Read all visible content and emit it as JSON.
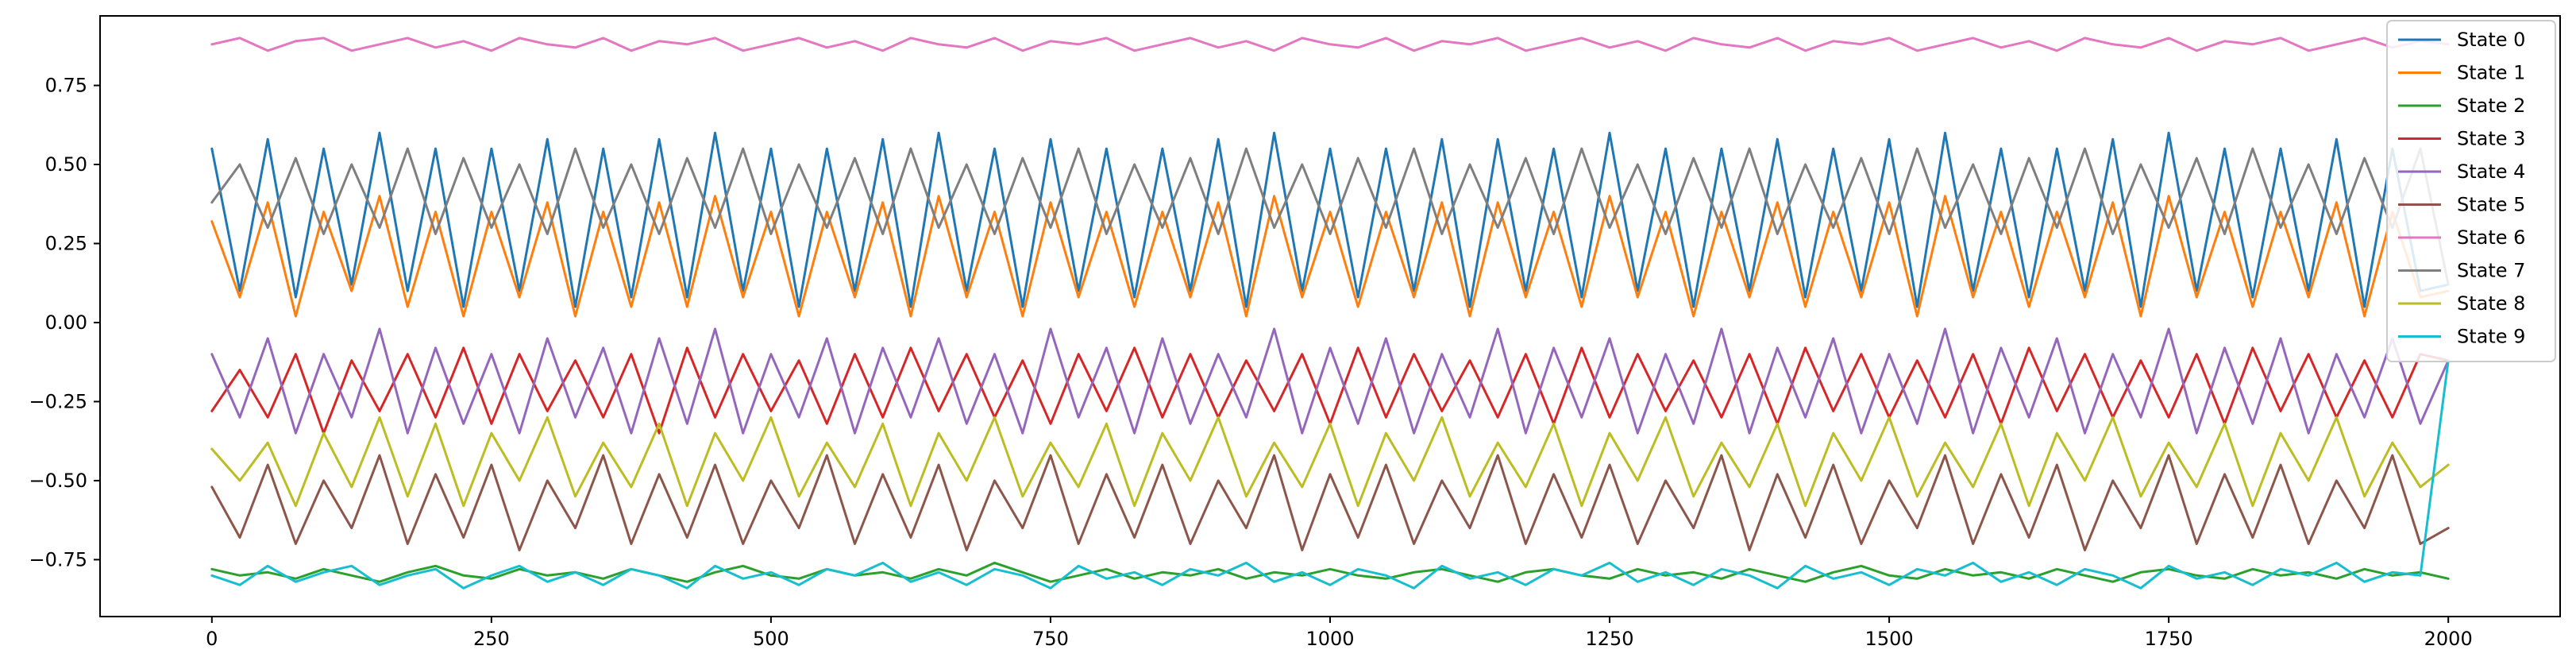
{
  "chart_data": {
    "type": "line",
    "title": "",
    "xlabel": "",
    "ylabel": "",
    "xlim": [
      -100,
      2100
    ],
    "ylim": [
      -0.93,
      0.97
    ],
    "x_ticks": [
      0,
      250,
      500,
      750,
      1000,
      1250,
      1500,
      1750,
      2000
    ],
    "x_tick_labels": [
      "0",
      "250",
      "500",
      "750",
      "1000",
      "1250",
      "1500",
      "1750",
      "2000"
    ],
    "y_ticks": [
      -0.75,
      -0.5,
      -0.25,
      0.0,
      0.25,
      0.5,
      0.75
    ],
    "y_tick_labels": [
      "−0.75",
      "−0.50",
      "−0.25",
      "0.00",
      "0.25",
      "0.50",
      "0.75"
    ],
    "grid": false,
    "legend_position": "top-right",
    "x": [
      0,
      25,
      50,
      75,
      100,
      125,
      150,
      175,
      200,
      225,
      250,
      275,
      300,
      325,
      350,
      375,
      400,
      425,
      450,
      475,
      500,
      525,
      550,
      575,
      600,
      625,
      650,
      675,
      700,
      725,
      750,
      775,
      800,
      825,
      850,
      875,
      900,
      925,
      950,
      975,
      1000,
      1025,
      1050,
      1075,
      1100,
      1125,
      1150,
      1175,
      1200,
      1225,
      1250,
      1275,
      1300,
      1325,
      1350,
      1375,
      1400,
      1425,
      1450,
      1475,
      1500,
      1525,
      1550,
      1575,
      1600,
      1625,
      1650,
      1675,
      1700,
      1725,
      1750,
      1775,
      1800,
      1825,
      1850,
      1875,
      1900,
      1925,
      1950,
      1975,
      2000
    ],
    "series": [
      {
        "name": "State 0",
        "color": "#1f77b4",
        "values": [
          0.55,
          0.1,
          0.58,
          0.08,
          0.55,
          0.12,
          0.6,
          0.1,
          0.55,
          0.05,
          0.55,
          0.1,
          0.58,
          0.05,
          0.55,
          0.08,
          0.58,
          0.08,
          0.6,
          0.1,
          0.55,
          0.05,
          0.55,
          0.1,
          0.58,
          0.05,
          0.6,
          0.1,
          0.55,
          0.05,
          0.58,
          0.1,
          0.55,
          0.08,
          0.55,
          0.1,
          0.58,
          0.05,
          0.6,
          0.1,
          0.55,
          0.08,
          0.55,
          0.1,
          0.58,
          0.05,
          0.58,
          0.1,
          0.55,
          0.08,
          0.6,
          0.1,
          0.55,
          0.05,
          0.55,
          0.1,
          0.58,
          0.08,
          0.55,
          0.1,
          0.58,
          0.05,
          0.6,
          0.1,
          0.55,
          0.08,
          0.55,
          0.1,
          0.58,
          0.05,
          0.6,
          0.1,
          0.55,
          0.08,
          0.55,
          0.1,
          0.58,
          0.05,
          0.55,
          0.1,
          0.12
        ]
      },
      {
        "name": "State 1",
        "color": "#ff7f0e",
        "values": [
          0.32,
          0.08,
          0.38,
          0.02,
          0.35,
          0.1,
          0.4,
          0.05,
          0.35,
          0.02,
          0.35,
          0.08,
          0.38,
          0.02,
          0.35,
          0.05,
          0.38,
          0.05,
          0.4,
          0.08,
          0.35,
          0.02,
          0.35,
          0.08,
          0.38,
          0.02,
          0.4,
          0.08,
          0.35,
          0.02,
          0.38,
          0.08,
          0.35,
          0.05,
          0.35,
          0.08,
          0.38,
          0.02,
          0.4,
          0.08,
          0.35,
          0.05,
          0.35,
          0.08,
          0.38,
          0.02,
          0.38,
          0.08,
          0.35,
          0.05,
          0.4,
          0.08,
          0.35,
          0.02,
          0.35,
          0.08,
          0.38,
          0.05,
          0.35,
          0.08,
          0.38,
          0.02,
          0.4,
          0.08,
          0.35,
          0.05,
          0.35,
          0.08,
          0.38,
          0.02,
          0.4,
          0.08,
          0.35,
          0.05,
          0.35,
          0.08,
          0.38,
          0.02,
          0.35,
          0.08,
          0.1
        ]
      },
      {
        "name": "State 2",
        "color": "#2ca02c",
        "values": [
          -0.78,
          -0.8,
          -0.79,
          -0.81,
          -0.78,
          -0.8,
          -0.82,
          -0.79,
          -0.77,
          -0.8,
          -0.81,
          -0.78,
          -0.8,
          -0.79,
          -0.81,
          -0.78,
          -0.8,
          -0.82,
          -0.79,
          -0.77,
          -0.8,
          -0.81,
          -0.78,
          -0.8,
          -0.79,
          -0.81,
          -0.78,
          -0.8,
          -0.76,
          -0.79,
          -0.82,
          -0.8,
          -0.78,
          -0.81,
          -0.79,
          -0.8,
          -0.78,
          -0.81,
          -0.79,
          -0.8,
          -0.78,
          -0.8,
          -0.81,
          -0.79,
          -0.78,
          -0.8,
          -0.82,
          -0.79,
          -0.78,
          -0.8,
          -0.81,
          -0.78,
          -0.8,
          -0.79,
          -0.81,
          -0.78,
          -0.8,
          -0.82,
          -0.79,
          -0.77,
          -0.8,
          -0.81,
          -0.78,
          -0.8,
          -0.79,
          -0.81,
          -0.78,
          -0.8,
          -0.82,
          -0.79,
          -0.78,
          -0.8,
          -0.81,
          -0.78,
          -0.8,
          -0.79,
          -0.81,
          -0.78,
          -0.8,
          -0.79,
          -0.81
        ]
      },
      {
        "name": "State 3",
        "color": "#d62728",
        "values": [
          -0.28,
          -0.15,
          -0.3,
          -0.1,
          -0.35,
          -0.12,
          -0.28,
          -0.1,
          -0.3,
          -0.08,
          -0.32,
          -0.1,
          -0.28,
          -0.12,
          -0.3,
          -0.1,
          -0.35,
          -0.08,
          -0.3,
          -0.1,
          -0.28,
          -0.12,
          -0.32,
          -0.1,
          -0.3,
          -0.08,
          -0.28,
          -0.1,
          -0.3,
          -0.12,
          -0.32,
          -0.1,
          -0.28,
          -0.08,
          -0.3,
          -0.1,
          -0.3,
          -0.12,
          -0.28,
          -0.1,
          -0.32,
          -0.08,
          -0.3,
          -0.1,
          -0.28,
          -0.12,
          -0.3,
          -0.1,
          -0.32,
          -0.08,
          -0.3,
          -0.1,
          -0.28,
          -0.12,
          -0.3,
          -0.1,
          -0.32,
          -0.08,
          -0.28,
          -0.1,
          -0.3,
          -0.12,
          -0.3,
          -0.1,
          -0.32,
          -0.08,
          -0.28,
          -0.1,
          -0.3,
          -0.12,
          -0.3,
          -0.1,
          -0.32,
          -0.08,
          -0.28,
          -0.1,
          -0.3,
          -0.12,
          -0.3,
          -0.1,
          -0.12
        ]
      },
      {
        "name": "State 4",
        "color": "#9467bd",
        "values": [
          -0.1,
          -0.3,
          -0.05,
          -0.35,
          -0.1,
          -0.3,
          -0.02,
          -0.35,
          -0.08,
          -0.32,
          -0.1,
          -0.35,
          -0.05,
          -0.3,
          -0.08,
          -0.35,
          -0.05,
          -0.32,
          -0.02,
          -0.35,
          -0.1,
          -0.3,
          -0.05,
          -0.35,
          -0.08,
          -0.3,
          -0.05,
          -0.32,
          -0.1,
          -0.35,
          -0.02,
          -0.3,
          -0.08,
          -0.35,
          -0.05,
          -0.32,
          -0.1,
          -0.3,
          -0.02,
          -0.35,
          -0.08,
          -0.32,
          -0.05,
          -0.35,
          -0.1,
          -0.3,
          -0.02,
          -0.35,
          -0.08,
          -0.3,
          -0.05,
          -0.35,
          -0.1,
          -0.32,
          -0.02,
          -0.35,
          -0.08,
          -0.3,
          -0.05,
          -0.35,
          -0.1,
          -0.32,
          -0.02,
          -0.35,
          -0.08,
          -0.3,
          -0.05,
          -0.35,
          -0.1,
          -0.3,
          -0.02,
          -0.35,
          -0.08,
          -0.32,
          -0.05,
          -0.35,
          -0.1,
          -0.3,
          -0.05,
          -0.32,
          -0.12
        ]
      },
      {
        "name": "State 5",
        "color": "#8c564b",
        "values": [
          -0.52,
          -0.68,
          -0.45,
          -0.7,
          -0.5,
          -0.65,
          -0.42,
          -0.7,
          -0.48,
          -0.68,
          -0.45,
          -0.72,
          -0.5,
          -0.65,
          -0.42,
          -0.7,
          -0.48,
          -0.68,
          -0.45,
          -0.7,
          -0.5,
          -0.65,
          -0.42,
          -0.7,
          -0.48,
          -0.68,
          -0.45,
          -0.72,
          -0.5,
          -0.65,
          -0.42,
          -0.7,
          -0.48,
          -0.68,
          -0.45,
          -0.7,
          -0.5,
          -0.65,
          -0.42,
          -0.72,
          -0.48,
          -0.68,
          -0.45,
          -0.7,
          -0.5,
          -0.65,
          -0.42,
          -0.7,
          -0.48,
          -0.68,
          -0.45,
          -0.7,
          -0.5,
          -0.65,
          -0.42,
          -0.72,
          -0.48,
          -0.68,
          -0.45,
          -0.7,
          -0.5,
          -0.65,
          -0.42,
          -0.7,
          -0.48,
          -0.68,
          -0.45,
          -0.72,
          -0.5,
          -0.65,
          -0.42,
          -0.7,
          -0.48,
          -0.68,
          -0.45,
          -0.7,
          -0.5,
          -0.65,
          -0.42,
          -0.7,
          -0.65
        ]
      },
      {
        "name": "State 6",
        "color": "#e377c2",
        "values": [
          0.88,
          0.9,
          0.86,
          0.89,
          0.9,
          0.86,
          0.88,
          0.9,
          0.87,
          0.89,
          0.86,
          0.9,
          0.88,
          0.87,
          0.9,
          0.86,
          0.89,
          0.88,
          0.9,
          0.86,
          0.88,
          0.9,
          0.87,
          0.89,
          0.86,
          0.9,
          0.88,
          0.87,
          0.9,
          0.86,
          0.89,
          0.88,
          0.9,
          0.86,
          0.88,
          0.9,
          0.87,
          0.89,
          0.86,
          0.9,
          0.88,
          0.87,
          0.9,
          0.86,
          0.89,
          0.88,
          0.9,
          0.86,
          0.88,
          0.9,
          0.87,
          0.89,
          0.86,
          0.9,
          0.88,
          0.87,
          0.9,
          0.86,
          0.89,
          0.88,
          0.9,
          0.86,
          0.88,
          0.9,
          0.87,
          0.89,
          0.86,
          0.9,
          0.88,
          0.87,
          0.9,
          0.86,
          0.89,
          0.88,
          0.9,
          0.86,
          0.88,
          0.9,
          0.87,
          0.89,
          0.88
        ]
      },
      {
        "name": "State 7",
        "color": "#7f7f7f",
        "values": [
          0.38,
          0.5,
          0.3,
          0.52,
          0.28,
          0.5,
          0.3,
          0.55,
          0.28,
          0.52,
          0.3,
          0.5,
          0.28,
          0.55,
          0.3,
          0.5,
          0.28,
          0.52,
          0.3,
          0.55,
          0.28,
          0.5,
          0.3,
          0.52,
          0.28,
          0.55,
          0.3,
          0.5,
          0.28,
          0.52,
          0.3,
          0.55,
          0.28,
          0.5,
          0.3,
          0.52,
          0.28,
          0.55,
          0.3,
          0.5,
          0.28,
          0.52,
          0.3,
          0.55,
          0.28,
          0.5,
          0.3,
          0.52,
          0.28,
          0.55,
          0.3,
          0.5,
          0.28,
          0.52,
          0.3,
          0.55,
          0.28,
          0.5,
          0.3,
          0.52,
          0.28,
          0.55,
          0.3,
          0.5,
          0.28,
          0.52,
          0.3,
          0.55,
          0.28,
          0.5,
          0.3,
          0.52,
          0.28,
          0.55,
          0.3,
          0.5,
          0.28,
          0.52,
          0.3,
          0.55,
          0.12
        ]
      },
      {
        "name": "State 8",
        "color": "#bcbd22",
        "values": [
          -0.4,
          -0.5,
          -0.38,
          -0.58,
          -0.35,
          -0.52,
          -0.3,
          -0.55,
          -0.32,
          -0.58,
          -0.35,
          -0.5,
          -0.3,
          -0.55,
          -0.38,
          -0.52,
          -0.32,
          -0.58,
          -0.35,
          -0.5,
          -0.3,
          -0.55,
          -0.38,
          -0.52,
          -0.32,
          -0.58,
          -0.35,
          -0.5,
          -0.3,
          -0.55,
          -0.38,
          -0.52,
          -0.32,
          -0.58,
          -0.35,
          -0.5,
          -0.3,
          -0.55,
          -0.38,
          -0.52,
          -0.32,
          -0.58,
          -0.35,
          -0.5,
          -0.3,
          -0.55,
          -0.38,
          -0.52,
          -0.32,
          -0.58,
          -0.35,
          -0.5,
          -0.3,
          -0.55,
          -0.38,
          -0.52,
          -0.32,
          -0.58,
          -0.35,
          -0.5,
          -0.3,
          -0.55,
          -0.38,
          -0.52,
          -0.32,
          -0.58,
          -0.35,
          -0.5,
          -0.3,
          -0.55,
          -0.38,
          -0.52,
          -0.32,
          -0.58,
          -0.35,
          -0.5,
          -0.3,
          -0.55,
          -0.38,
          -0.52,
          -0.45
        ]
      },
      {
        "name": "State 9",
        "color": "#17becf",
        "values": [
          -0.8,
          -0.83,
          -0.77,
          -0.82,
          -0.79,
          -0.77,
          -0.83,
          -0.8,
          -0.78,
          -0.84,
          -0.8,
          -0.77,
          -0.82,
          -0.79,
          -0.83,
          -0.78,
          -0.8,
          -0.84,
          -0.77,
          -0.81,
          -0.79,
          -0.83,
          -0.78,
          -0.8,
          -0.76,
          -0.82,
          -0.79,
          -0.83,
          -0.78,
          -0.8,
          -0.84,
          -0.77,
          -0.81,
          -0.79,
          -0.83,
          -0.78,
          -0.8,
          -0.76,
          -0.82,
          -0.79,
          -0.83,
          -0.78,
          -0.8,
          -0.84,
          -0.77,
          -0.81,
          -0.79,
          -0.83,
          -0.78,
          -0.8,
          -0.76,
          -0.82,
          -0.79,
          -0.83,
          -0.78,
          -0.8,
          -0.84,
          -0.77,
          -0.81,
          -0.79,
          -0.83,
          -0.78,
          -0.8,
          -0.76,
          -0.82,
          -0.79,
          -0.83,
          -0.78,
          -0.8,
          -0.84,
          -0.77,
          -0.81,
          -0.79,
          -0.83,
          -0.78,
          -0.8,
          -0.76,
          -0.82,
          -0.79,
          -0.8,
          -0.12
        ]
      }
    ]
  }
}
